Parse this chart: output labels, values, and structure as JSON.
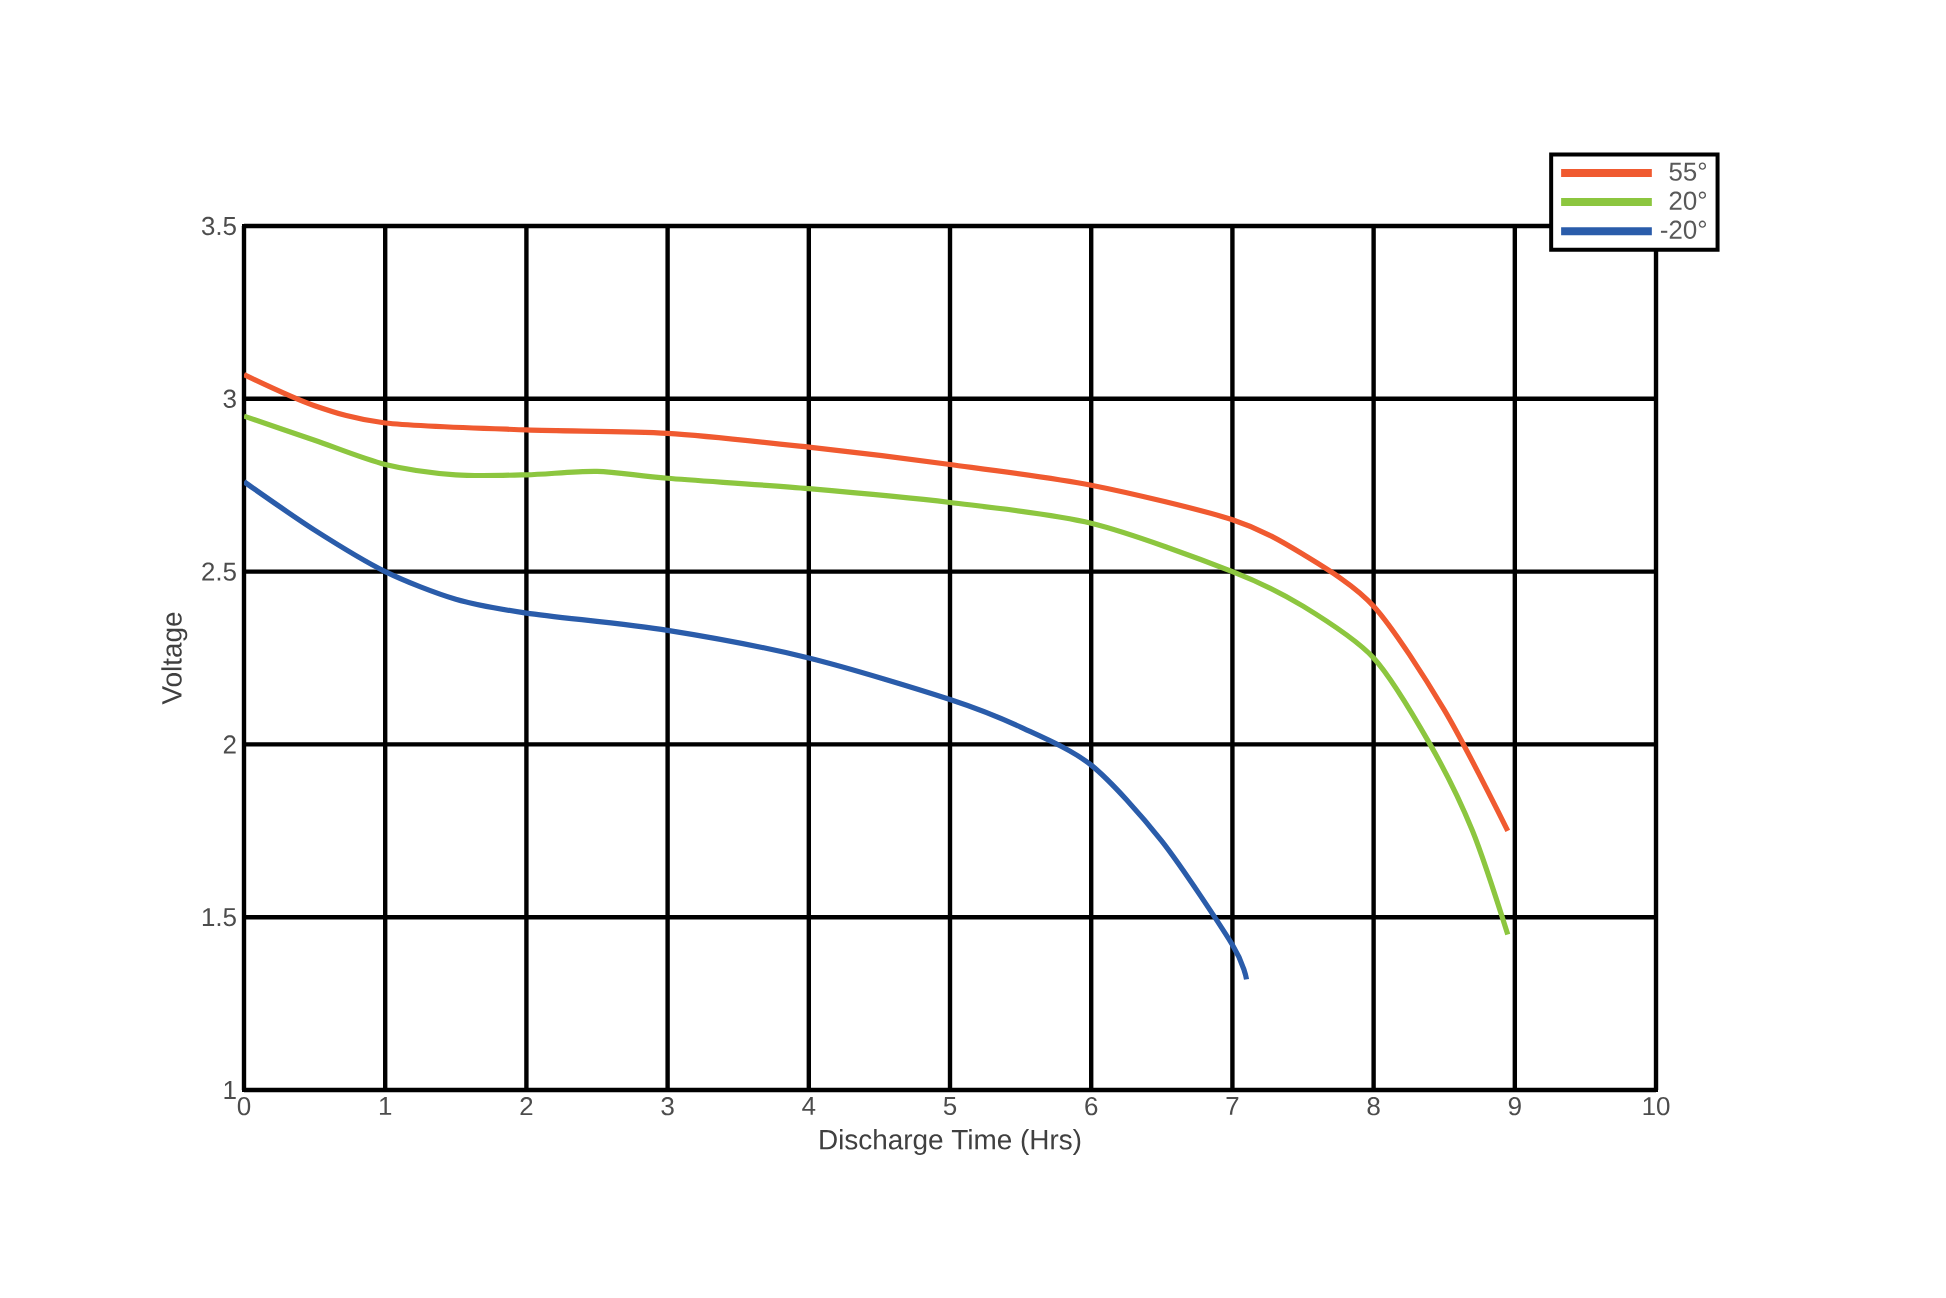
{
  "chart_data": {
    "type": "line",
    "xlabel": "Discharge Time (Hrs)",
    "ylabel": "Voltage",
    "xlim": [
      0,
      10
    ],
    "ylim": [
      1,
      3.5
    ],
    "xticks": [
      0,
      1,
      2,
      3,
      4,
      5,
      6,
      7,
      8,
      9,
      10
    ],
    "yticks": [
      1,
      1.5,
      2,
      2.5,
      3,
      3.5
    ],
    "grid": true,
    "legend": "top right",
    "line_style": "solid",
    "marker": "none",
    "series": [
      {
        "name": "55°",
        "color": "#f05a30",
        "x": [
          0,
          0.5,
          1,
          2,
          3,
          4,
          5,
          6,
          7,
          7.5,
          8,
          8.5,
          8.95
        ],
        "values": [
          3.07,
          2.98,
          2.93,
          2.91,
          2.9,
          2.86,
          2.81,
          2.75,
          2.65,
          2.55,
          2.4,
          2.1,
          1.75
        ]
      },
      {
        "name": "20°",
        "color": "#8cc63f",
        "x": [
          0,
          0.5,
          1,
          1.5,
          2,
          2.5,
          3,
          4,
          5,
          6,
          7,
          7.5,
          8,
          8.4,
          8.7,
          8.95
        ],
        "values": [
          2.95,
          2.88,
          2.81,
          2.78,
          2.78,
          2.79,
          2.77,
          2.74,
          2.7,
          2.64,
          2.5,
          2.4,
          2.25,
          2.0,
          1.75,
          1.45
        ]
      },
      {
        "name": "-20°",
        "color": "#2a5caa",
        "x": [
          0,
          0.5,
          1,
          1.5,
          2,
          3,
          4,
          5,
          5.5,
          6,
          6.5,
          7,
          7.1
        ],
        "values": [
          2.76,
          2.62,
          2.5,
          2.42,
          2.38,
          2.33,
          2.25,
          2.13,
          2.05,
          1.94,
          1.72,
          1.42,
          1.32
        ]
      }
    ]
  }
}
